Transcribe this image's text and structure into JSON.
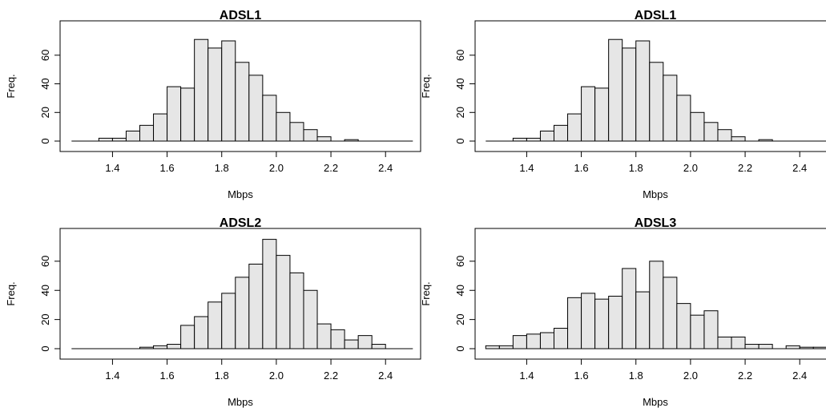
{
  "chart_data": [
    {
      "type": "bar",
      "title": "ADSL1",
      "xlabel": "Mbps",
      "ylabel": "Freq.",
      "xlim": [
        1.25,
        2.5
      ],
      "ylim": [
        0,
        77
      ],
      "xticks": [
        "1.4",
        "1.6",
        "1.8",
        "2.0",
        "2.2",
        "2.4"
      ],
      "yticks": [
        "0",
        "20",
        "40",
        "60"
      ],
      "bin_width": 0.05,
      "bins_start": [
        1.25,
        1.3,
        1.35,
        1.4,
        1.45,
        1.5,
        1.55,
        1.6,
        1.65,
        1.7,
        1.75,
        1.8,
        1.85,
        1.9,
        1.95,
        2.0,
        2.05,
        2.1,
        2.15,
        2.2,
        2.25,
        2.3,
        2.35,
        2.4,
        2.45
      ],
      "values": [
        0,
        0,
        2,
        2,
        7,
        11,
        19,
        38,
        37,
        71,
        65,
        70,
        55,
        46,
        32,
        20,
        13,
        8,
        3,
        0,
        1,
        0,
        0,
        0,
        0
      ]
    },
    {
      "type": "bar",
      "title": "ADSL1",
      "xlabel": "Mbps",
      "ylabel": "Freq.",
      "xlim": [
        1.25,
        2.5
      ],
      "ylim": [
        0,
        77
      ],
      "xticks": [
        "1.4",
        "1.6",
        "1.8",
        "2.0",
        "2.2",
        "2.4"
      ],
      "yticks": [
        "0",
        "20",
        "40",
        "60"
      ],
      "bin_width": 0.05,
      "bins_start": [
        1.25,
        1.3,
        1.35,
        1.4,
        1.45,
        1.5,
        1.55,
        1.6,
        1.65,
        1.7,
        1.75,
        1.8,
        1.85,
        1.9,
        1.95,
        2.0,
        2.05,
        2.1,
        2.15,
        2.2,
        2.25,
        2.3,
        2.35,
        2.4,
        2.45
      ],
      "values": [
        0,
        0,
        2,
        2,
        7,
        11,
        19,
        38,
        37,
        71,
        65,
        70,
        55,
        46,
        32,
        20,
        13,
        8,
        3,
        0,
        1,
        0,
        0,
        0,
        0
      ]
    },
    {
      "type": "bar",
      "title": "ADSL2",
      "xlabel": "Mbps",
      "ylabel": "Freq.",
      "xlim": [
        1.25,
        2.5
      ],
      "ylim": [
        0,
        80
      ],
      "xticks": [
        "1.4",
        "1.6",
        "1.8",
        "2.0",
        "2.2",
        "2.4"
      ],
      "yticks": [
        "0",
        "20",
        "40",
        "60"
      ],
      "bin_width": 0.05,
      "bins_start": [
        1.25,
        1.3,
        1.35,
        1.4,
        1.45,
        1.5,
        1.55,
        1.6,
        1.65,
        1.7,
        1.75,
        1.8,
        1.85,
        1.9,
        1.95,
        2.0,
        2.05,
        2.1,
        2.15,
        2.2,
        2.25,
        2.3,
        2.35,
        2.4,
        2.45
      ],
      "values": [
        0,
        0,
        0,
        0,
        0,
        1,
        2,
        3,
        16,
        22,
        32,
        38,
        49,
        58,
        75,
        64,
        52,
        40,
        17,
        13,
        6,
        9,
        3,
        0,
        0
      ]
    },
    {
      "type": "bar",
      "title": "ADSL3",
      "xlabel": "Mbps",
      "ylabel": "Freq.",
      "xlim": [
        1.25,
        2.5
      ],
      "ylim": [
        0,
        80
      ],
      "xticks": [
        "1.4",
        "1.6",
        "1.8",
        "2.0",
        "2.2",
        "2.4"
      ],
      "yticks": [
        "0",
        "20",
        "40",
        "60"
      ],
      "bin_width": 0.05,
      "bins_start": [
        1.25,
        1.3,
        1.35,
        1.4,
        1.45,
        1.5,
        1.55,
        1.6,
        1.65,
        1.7,
        1.75,
        1.8,
        1.85,
        1.9,
        1.95,
        2.0,
        2.05,
        2.1,
        2.15,
        2.2,
        2.25,
        2.3,
        2.35,
        2.4,
        2.45
      ],
      "values": [
        2,
        2,
        9,
        10,
        11,
        14,
        35,
        38,
        34,
        36,
        55,
        39,
        60,
        49,
        31,
        23,
        26,
        8,
        8,
        3,
        3,
        0,
        2,
        1,
        1
      ]
    }
  ]
}
